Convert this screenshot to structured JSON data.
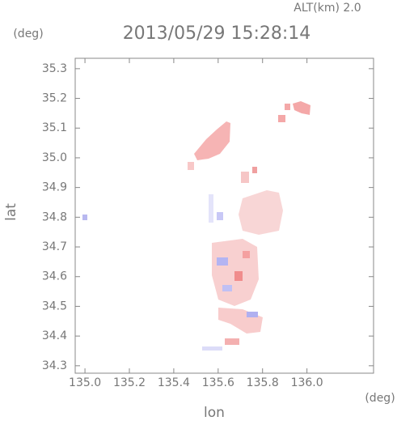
{
  "chart_data": {
    "type": "scatter",
    "title": "2013/05/29 15:28:14",
    "altitude_label": "ALT(km) 2.0",
    "y_unit": "(deg)",
    "x_unit": "(deg)",
    "xlabel": "lon",
    "ylabel": "lat",
    "xlim": [
      134.956,
      136.3
    ],
    "ylim": [
      34.275,
      35.335
    ],
    "xticks": [
      {
        "value": 135.0,
        "label": "135.0"
      },
      135.2,
      135.4,
      135.6,
      135.8,
      {
        "value": 136.0,
        "label": "136.0"
      }
    ],
    "yticks": [
      34.3,
      34.4,
      34.5,
      34.6,
      34.7,
      34.8,
      34.9,
      {
        "value": 35.0,
        "label": "35.0"
      },
      35.1,
      35.2,
      35.3
    ]
  }
}
